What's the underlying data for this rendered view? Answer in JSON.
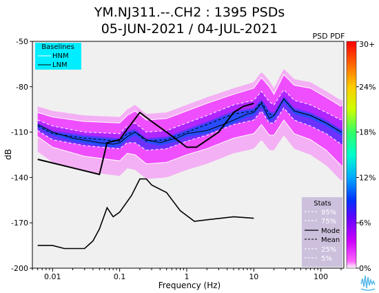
{
  "chart_data": {
    "type": "heatmap",
    "title_line1": "YM.NJ311.--.CH2 : 1395 PSDs",
    "title_line2": "05-JUN-2021 / 04-JUL-2021",
    "xlabel": "Frequency (Hz)",
    "ylabel": "dB",
    "x_scale": "log",
    "xlim": [
      0.005,
      220
    ],
    "ylim": [
      -200,
      -50
    ],
    "x_ticks": [
      0.01,
      0.1,
      1,
      10,
      100
    ],
    "x_tick_labels": [
      "0.01",
      "0.1",
      "1",
      "10",
      "100"
    ],
    "y_ticks": [
      -50,
      -80,
      -110,
      -140,
      -170,
      -200
    ],
    "y_tick_labels": [
      "-50",
      "-80",
      "-110",
      "-140",
      "-170",
      "-200"
    ],
    "colorbar": {
      "title": "PSD PDF",
      "ticks": [
        0,
        6,
        12,
        18,
        24,
        30
      ],
      "tick_labels": [
        "0%",
        "6%",
        "12%",
        "18%",
        "24%",
        "30+"
      ]
    },
    "baselines_legend": {
      "title": "Baselines",
      "entries": [
        "HNM",
        "LNM"
      ]
    },
    "stats_legend": {
      "title": "Stats",
      "entries": [
        "95%",
        "75%",
        "Mode",
        "Mean",
        "25%",
        "5%"
      ]
    },
    "series": [
      {
        "name": "HNM",
        "x": [
          0.006,
          0.05,
          0.065,
          0.1,
          0.13,
          0.2,
          0.3,
          0.5,
          1.0,
          1.4,
          3.0,
          5.0,
          7.0,
          10.0
        ],
        "y": [
          -128,
          -138,
          -117,
          -115,
          -108,
          -97,
          -103,
          -110,
          -120,
          -120,
          -110,
          -97,
          -93,
          -91
        ]
      },
      {
        "name": "LNM",
        "x": [
          0.006,
          0.01,
          0.015,
          0.02,
          0.03,
          0.04,
          0.05,
          0.065,
          0.08,
          0.1,
          0.15,
          0.2,
          0.25,
          0.3,
          0.5,
          0.8,
          1.3,
          2.0,
          5.0,
          10.0
        ],
        "y": [
          -185,
          -185,
          -187,
          -187,
          -187,
          -182,
          -174,
          -160,
          -166,
          -163,
          -152,
          -141,
          -141,
          -145,
          -150,
          -162,
          -169,
          -168,
          -166,
          -167
        ]
      },
      {
        "name": "95%",
        "x": [
          0.006,
          0.01,
          0.03,
          0.1,
          0.13,
          0.17,
          0.25,
          0.5,
          1,
          2,
          5,
          10,
          13,
          17,
          20,
          28,
          40,
          70,
          120,
          200
        ],
        "y": [
          -97,
          -100,
          -103,
          -104,
          -99,
          -96,
          -102,
          -101,
          -96,
          -91,
          -85,
          -81,
          -74,
          -80,
          -85,
          -72,
          -79,
          -81,
          -87,
          -93
        ]
      },
      {
        "name": "75%",
        "x": [
          0.006,
          0.01,
          0.03,
          0.1,
          0.13,
          0.17,
          0.25,
          0.5,
          1,
          2,
          5,
          10,
          13,
          17,
          20,
          28,
          40,
          70,
          120,
          200
        ],
        "y": [
          -102,
          -106,
          -110,
          -111,
          -106,
          -104,
          -110,
          -109,
          -104,
          -99,
          -92,
          -89,
          -83,
          -90,
          -92,
          -82,
          -89,
          -92,
          -97,
          -102
        ]
      },
      {
        "name": "Mode",
        "x": [
          0.006,
          0.01,
          0.02,
          0.05,
          0.08,
          0.1,
          0.13,
          0.17,
          0.25,
          0.4,
          0.7,
          1,
          2,
          4,
          8,
          10,
          13,
          17,
          20,
          28,
          40,
          70,
          120,
          200
        ],
        "y": [
          -105,
          -110,
          -114,
          -117,
          -118,
          -117,
          -113,
          -110,
          -115,
          -117,
          -114,
          -111,
          -109,
          -104,
          -98,
          -97,
          -91,
          -101,
          -99,
          -88,
          -96,
          -99,
          -104,
          -110
        ]
      },
      {
        "name": "Mean",
        "x": [
          0.006,
          0.01,
          0.03,
          0.1,
          0.13,
          0.17,
          0.25,
          0.5,
          1,
          2,
          5,
          10,
          13,
          17,
          20,
          28,
          40,
          70,
          120,
          200
        ],
        "y": [
          -106,
          -111,
          -114,
          -116,
          -111,
          -110,
          -116,
          -115,
          -110,
          -105,
          -98,
          -96,
          -90,
          -98,
          -99,
          -88,
          -96,
          -99,
          -104,
          -110
        ]
      },
      {
        "name": "25%",
        "x": [
          0.006,
          0.01,
          0.03,
          0.1,
          0.13,
          0.17,
          0.25,
          0.5,
          1,
          2,
          5,
          10,
          13,
          17,
          20,
          28,
          40,
          70,
          120,
          200
        ],
        "y": [
          -109,
          -115,
          -119,
          -121,
          -117,
          -117,
          -122,
          -121,
          -116,
          -112,
          -105,
          -102,
          -96,
          -104,
          -104,
          -94,
          -102,
          -106,
          -111,
          -118
        ]
      },
      {
        "name": "5%",
        "x": [
          0.006,
          0.01,
          0.03,
          0.1,
          0.13,
          0.17,
          0.25,
          0.5,
          1,
          2,
          5,
          10,
          13,
          17,
          20,
          28,
          40,
          70,
          120,
          200
        ],
        "y": [
          -113,
          -120,
          -126,
          -129,
          -124,
          -125,
          -131,
          -130,
          -125,
          -121,
          -114,
          -111,
          -105,
          -112,
          -112,
          -102,
          -111,
          -115,
          -122,
          -132
        ]
      }
    ]
  }
}
